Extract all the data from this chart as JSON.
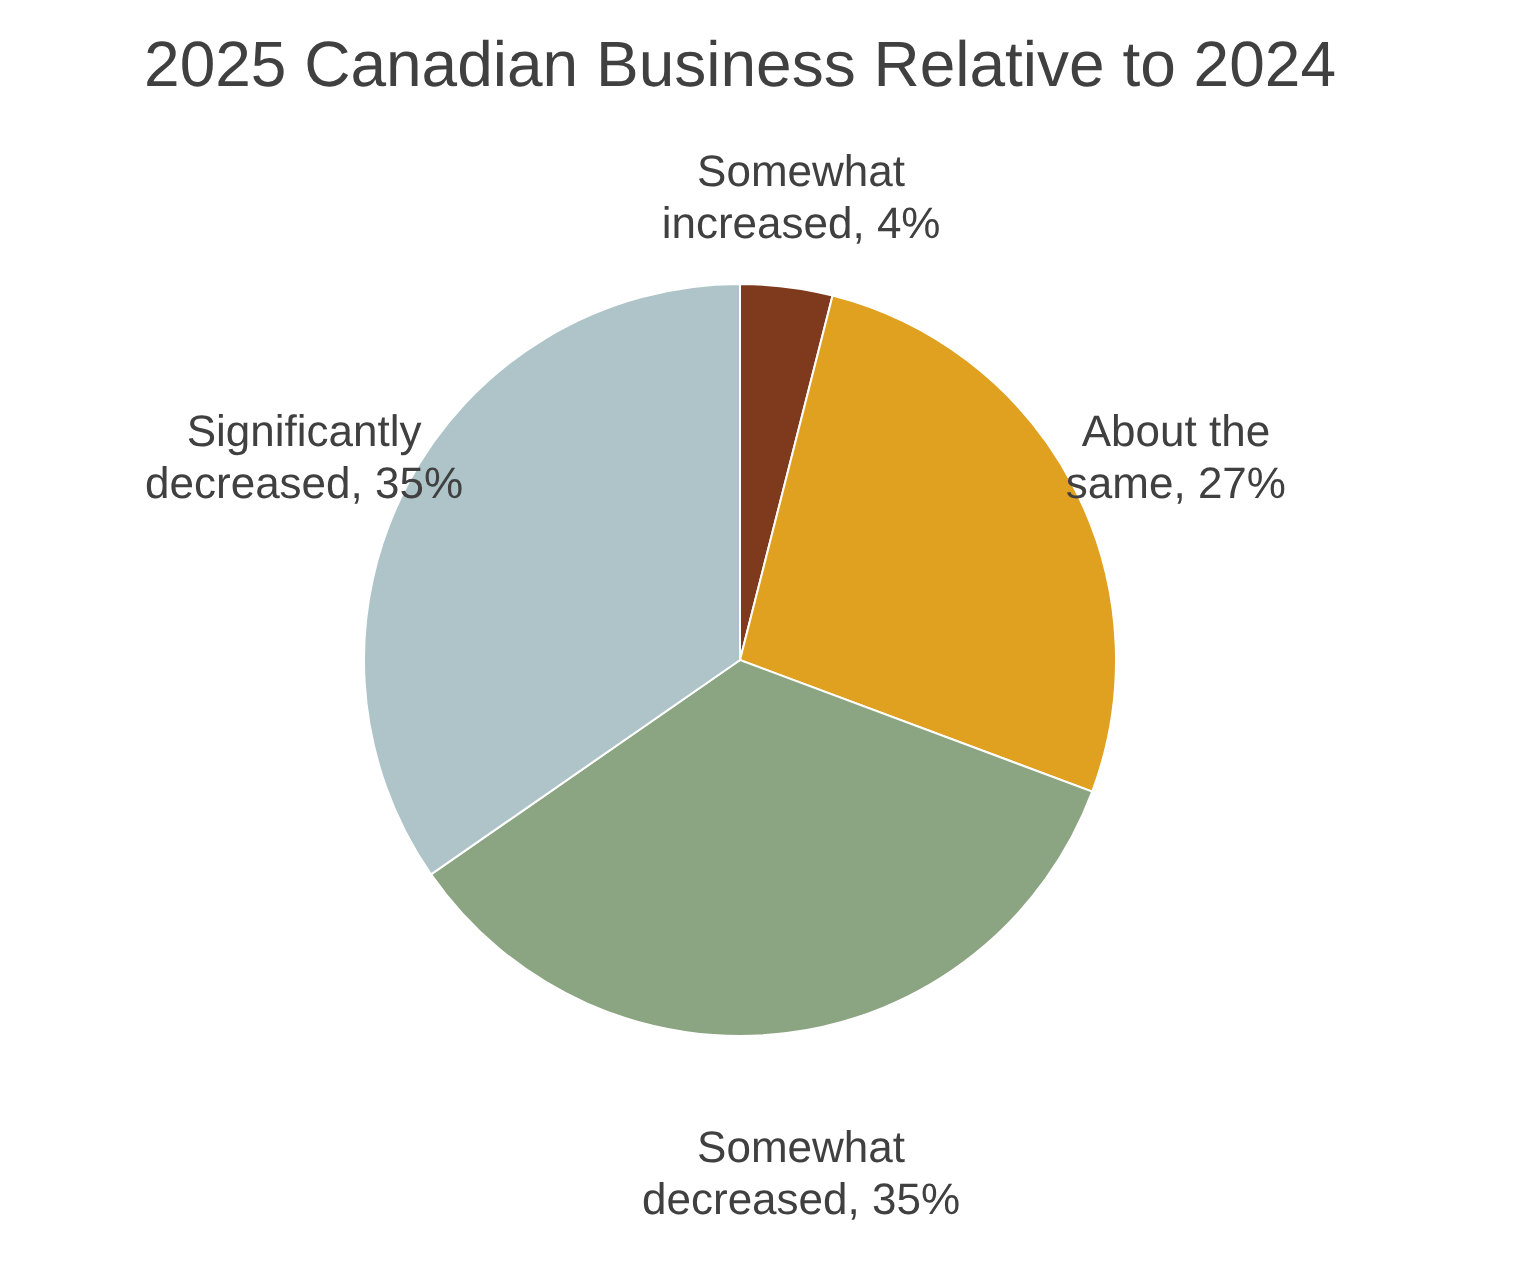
{
  "chart_data": {
    "type": "pie",
    "title": "2025 Canadian Business Relative to 2024",
    "categories": [
      "Somewhat increased",
      "About the same",
      "Somewhat decreased",
      "Significantly decreased"
    ],
    "values": [
      4,
      27,
      35,
      35
    ],
    "value_labels": [
      "4%",
      "27%",
      "35%",
      "35%"
    ],
    "colors": [
      "#7f3a1e",
      "#e0a020",
      "#8ba582",
      "#aec4c9"
    ],
    "legend": false
  }
}
